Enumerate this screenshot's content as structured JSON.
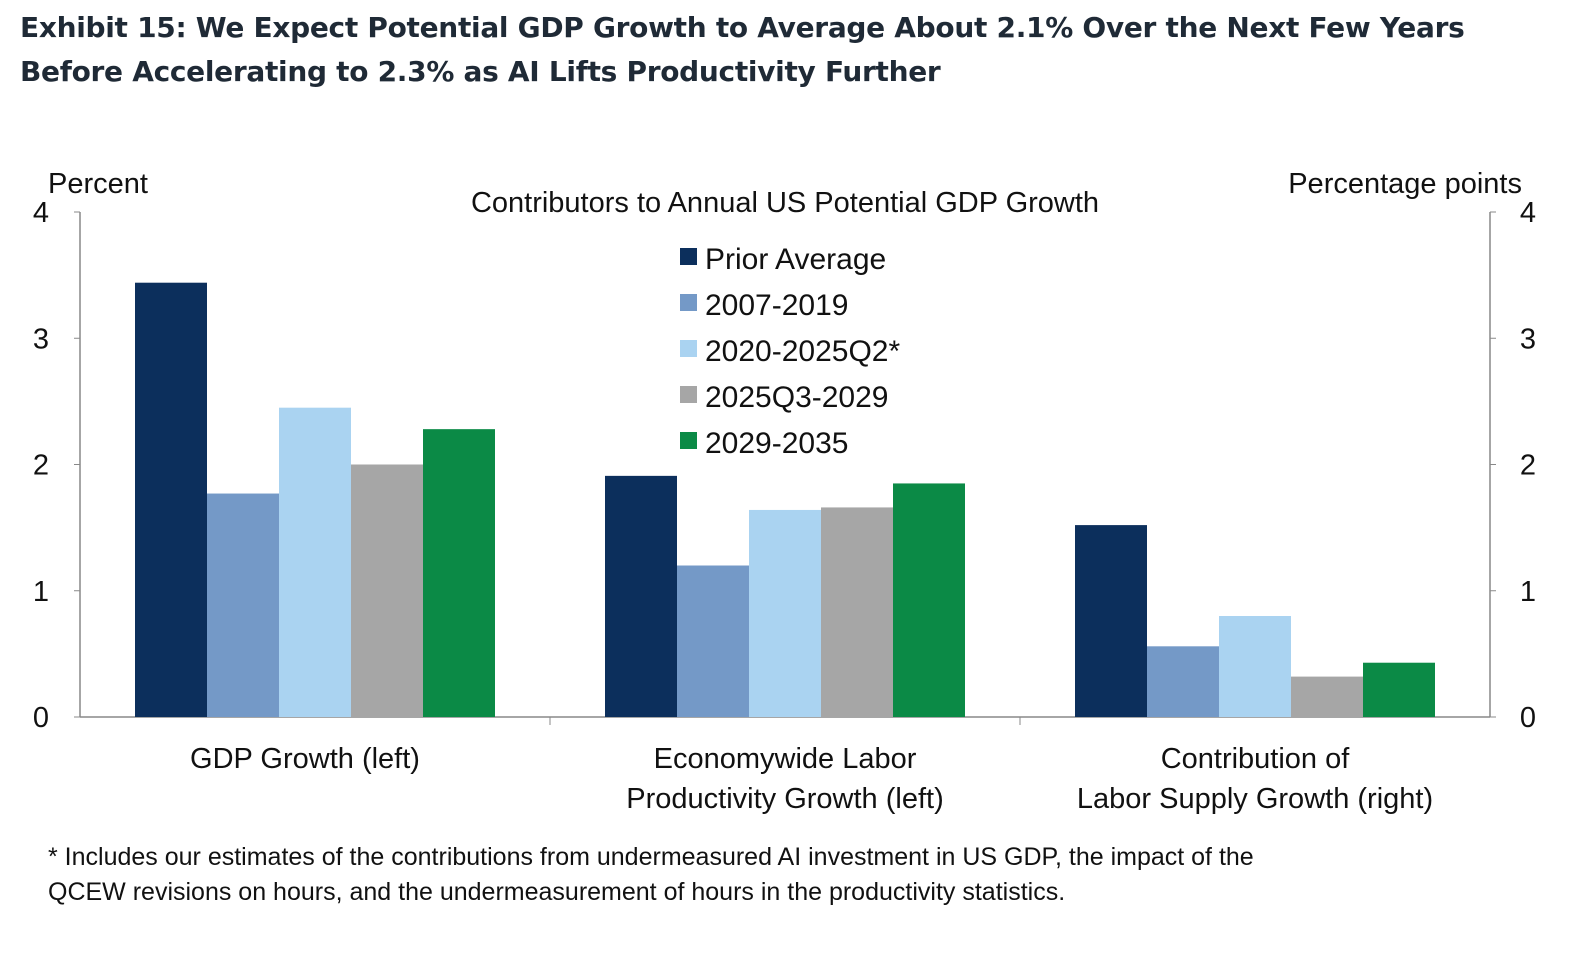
{
  "title_line1": "Exhibit 15: We Expect Potential GDP Growth to Average About 2.1% Over the Next Few Years",
  "title_line2": "Before Accelerating to 2.3% as AI Lifts Productivity Further",
  "footnote_line1": "* Includes our estimates of the contributions from undermeasured AI investment in US GDP, the impact of the",
  "footnote_line2": "QCEW revisions on hours, and the undermeasurement of hours in the productivity statistics.",
  "chart_data": {
    "type": "bar",
    "title": "Contributors to Annual US Potential GDP Growth",
    "ylabel_left": "Percent",
    "ylabel_right": "Percentage points",
    "ylim": [
      0,
      4
    ],
    "yticks": [
      0,
      1,
      2,
      3,
      4
    ],
    "legend_placement": "top-center",
    "categories": [
      [
        "GDP Growth (left)"
      ],
      [
        "Economywide Labor",
        "Productivity Growth (left)"
      ],
      [
        "Contribution of",
        "Labor Supply Growth (right)"
      ]
    ],
    "series": [
      {
        "name": "Prior Average",
        "color": "#0c2f5c",
        "values": [
          3.44,
          1.91,
          1.52
        ]
      },
      {
        "name": "2007-2019",
        "color": "#7499c7",
        "values": [
          1.77,
          1.2,
          0.56
        ]
      },
      {
        "name": "2020-2025Q2*",
        "color": "#aad3f1",
        "values": [
          2.45,
          1.64,
          0.8
        ]
      },
      {
        "name": "2025Q3-2029",
        "color": "#a6a6a6",
        "values": [
          2.0,
          1.66,
          0.32
        ]
      },
      {
        "name": "2029-2035",
        "color": "#0b8a46",
        "values": [
          2.28,
          1.85,
          0.43
        ]
      }
    ]
  }
}
